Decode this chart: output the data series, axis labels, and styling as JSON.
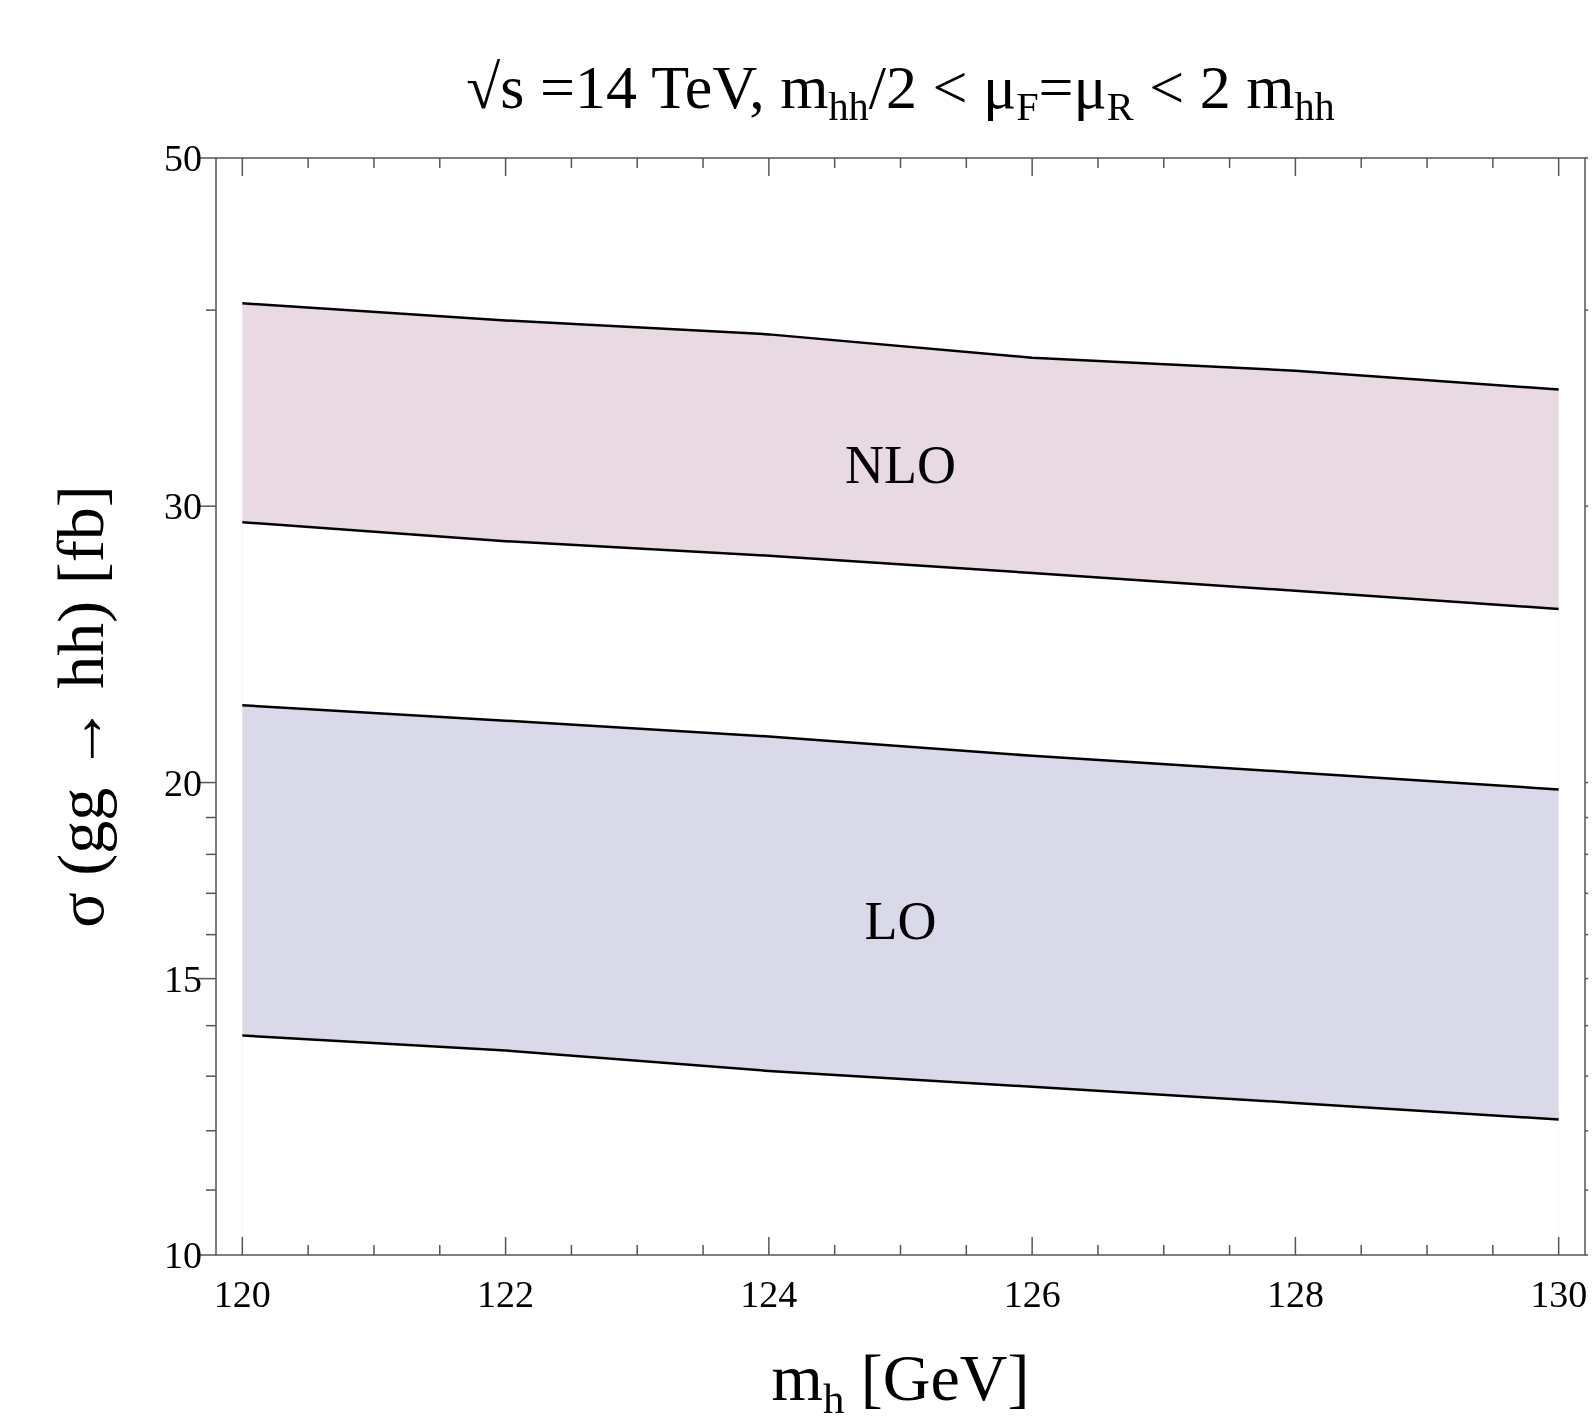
{
  "chart_data": {
    "type": "area",
    "title": "√s =14 TeV, m$_{hh}$/2 < μ$_{F}$=μ$_{R}$ < 2 m$_{hh}$",
    "xlabel": "m$_{h}$ [GeV]",
    "ylabel": "σ (gg → hh) [fb]",
    "x": [
      120,
      122,
      124,
      126,
      128,
      130
    ],
    "series": [
      {
        "name": "NLO",
        "color": "#e8d9e3",
        "values": [
          40.4,
          39.4,
          38.6,
          37.3,
          36.6,
          35.6
        ]
      },
      {
        "color": "#ffffff",
        "values": [
          29.3,
          28.5,
          27.9,
          27.2,
          26.5,
          25.8
        ]
      },
      {
        "name": "LO",
        "color": "#d9d9ea",
        "values": [
          22.4,
          21.9,
          21.4,
          20.8,
          20.3,
          19.8
        ]
      },
      {
        "type": "line",
        "color": "#000000",
        "values": [
          13.8,
          13.5,
          13.1,
          12.8,
          12.5,
          12.2
        ]
      }
    ],
    "log": "y",
    "grid": false,
    "xlim": [
      119.8,
      130.2
    ],
    "xticks": [
      120,
      {
        "value": 120.5,
        "label": null
      },
      {
        "value": 121,
        "label": null
      },
      {
        "value": 121.5,
        "label": null
      },
      122,
      {
        "value": 122.5,
        "label": null
      },
      {
        "value": 123,
        "label": null
      },
      {
        "value": 123.5,
        "label": null
      },
      124,
      {
        "value": 124.5,
        "label": null
      },
      {
        "value": 125,
        "label": null
      },
      {
        "value": 125.5,
        "label": null
      },
      126,
      {
        "value": 126.5,
        "label": null
      },
      {
        "value": 127,
        "label": null
      },
      {
        "value": 127.5,
        "label": null
      },
      128,
      {
        "value": 128.5,
        "label": null
      },
      {
        "value": 129,
        "label": null
      },
      {
        "value": 129.5,
        "label": null
      },
      130
    ],
    "ylim": [
      10,
      50
    ],
    "yticks": [
      10,
      {
        "value": 11,
        "label": null
      },
      {
        "value": 12,
        "label": null
      },
      {
        "value": 13,
        "label": null
      },
      {
        "value": 14,
        "label": null
      },
      15,
      {
        "value": 16,
        "label": null
      },
      {
        "value": 17,
        "label": null
      },
      {
        "value": 18,
        "label": null
      },
      {
        "value": 19,
        "label": null
      },
      20,
      30,
      {
        "value": 40,
        "label": null
      },
      50
    ]
  }
}
